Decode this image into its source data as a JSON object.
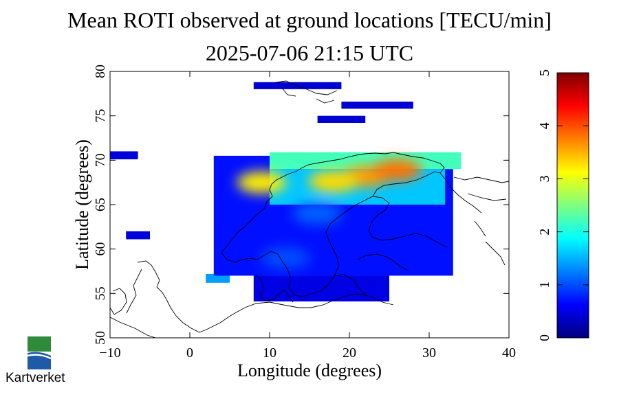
{
  "title": "Mean ROTI observed at ground locations [TECU/min]",
  "timestamp": "2025-07-06 21:15 UTC",
  "map": {
    "xlabel": "Longitude (degrees)",
    "ylabel": "Latitude (degrees)",
    "xlim": [
      -10,
      40
    ],
    "ylim": [
      50,
      80
    ],
    "xticks": [
      -10,
      0,
      10,
      20,
      30,
      40
    ],
    "xtick_labels": [
      "−10",
      "0",
      "10",
      "20",
      "30",
      "40"
    ],
    "yticks": [
      50,
      55,
      60,
      65,
      70,
      75,
      80
    ],
    "ytick_labels": [
      "50",
      "55",
      "60",
      "65",
      "70",
      "75",
      "80"
    ],
    "cells": [
      {
        "lon": [
          -10,
          -6.5
        ],
        "lat": [
          70.1,
          71.0
        ],
        "v": 0.45
      },
      {
        "lon": [
          -8,
          -5
        ],
        "lat": [
          61.1,
          62.0
        ],
        "v": 0.45
      },
      {
        "lon": [
          2,
          5
        ],
        "lat": [
          56.2,
          57.2
        ],
        "v": 1.4
      },
      {
        "lon": [
          8,
          19
        ],
        "lat": [
          78.0,
          78.8
        ],
        "v": 0.4
      },
      {
        "lon": [
          19,
          28
        ],
        "lat": [
          75.8,
          76.6
        ],
        "v": 0.4
      },
      {
        "lon": [
          16,
          22
        ],
        "lat": [
          74.2,
          75.0
        ],
        "v": 0.4
      },
      {
        "lon": [
          3,
          33
        ],
        "lat": [
          57,
          70.5
        ],
        "v": 0.7
      },
      {
        "lon": [
          8,
          25
        ],
        "lat": [
          54.1,
          57.0
        ],
        "v": 0.5
      },
      {
        "lon": [
          10,
          34
        ],
        "lat": [
          69,
          70.9
        ],
        "v": 2.2
      },
      {
        "lon": [
          10,
          32
        ],
        "lat": [
          65,
          69.0
        ],
        "v": 1.6
      }
    ],
    "hotspots": [
      {
        "lon": 22,
        "lat": 68.2,
        "v": 3.6
      },
      {
        "lon": 26,
        "lat": 68.9,
        "v": 3.8
      },
      {
        "lon": 18,
        "lat": 67.6,
        "v": 3.3
      },
      {
        "lon": 16,
        "lat": 64.0,
        "v": 1.1
      },
      {
        "lon": 12,
        "lat": 59.0,
        "v": 1.0
      },
      {
        "lon": 9,
        "lat": 67.5,
        "v": 3.2
      }
    ]
  },
  "colorbar": {
    "min": 0,
    "max": 5,
    "ticks": [
      0,
      1,
      2,
      3,
      4,
      5
    ],
    "tick_labels": [
      "0",
      "1",
      "2",
      "3",
      "4",
      "5"
    ],
    "colors": [
      "#00007f",
      "#0000ff",
      "#007fff",
      "#00ffff",
      "#7fff7f",
      "#ffff00",
      "#ff7f00",
      "#ff0000",
      "#7f0000"
    ]
  },
  "logo": {
    "text": "Kartverket",
    "colors": [
      "#2e8b3a",
      "#1f5aa8"
    ]
  }
}
